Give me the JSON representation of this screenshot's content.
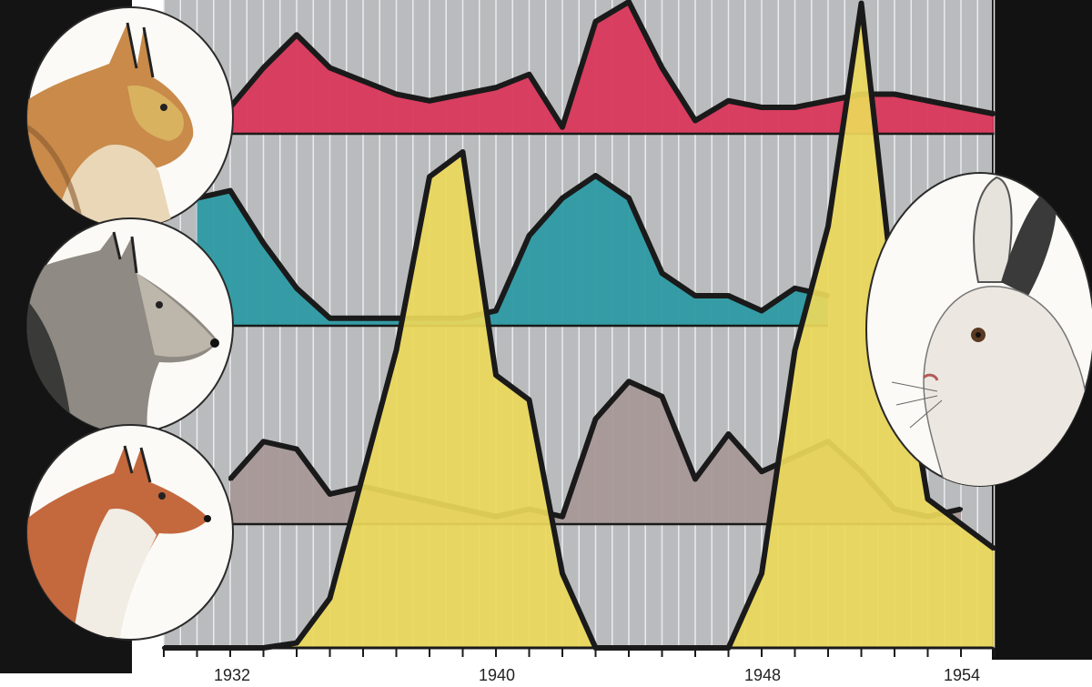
{
  "colors": {
    "background_panel": "#b9bbbd",
    "left_band": "#141414",
    "right_band": "#121212",
    "grid_line": "#e9ecef",
    "lynx": "#d8375a",
    "wolf": "#2d9aa4",
    "fox": "#a89898",
    "hare": "#ecd85a",
    "outline": "#1a1a1a"
  },
  "icons": [
    "lynx-portrait-icon",
    "wolf-portrait-icon",
    "fox-portrait-icon",
    "hare-portrait-icon"
  ],
  "chart_data": {
    "type": "area",
    "title": "",
    "xlabel": "",
    "ylabel": "",
    "x_tick_labels": [
      "1932",
      "1940",
      "1948",
      "1954"
    ],
    "x_range": [
      1930,
      1955
    ],
    "grid": "vertical lines",
    "x": [
      1930,
      1931,
      1932,
      1933,
      1934,
      1935,
      1936,
      1937,
      1938,
      1939,
      1940,
      1941,
      1942,
      1943,
      1944,
      1945,
      1946,
      1947,
      1948,
      1949,
      1950,
      1951,
      1952,
      1953,
      1954,
      1955
    ],
    "series": [
      {
        "key": "lynx",
        "baseline_rank": 1,
        "values": [
          null,
          null,
          0.2,
          0.5,
          0.75,
          0.5,
          0.4,
          0.3,
          0.25,
          0.3,
          0.35,
          0.45,
          0.05,
          0.85,
          1.0,
          0.5,
          0.1,
          0.25,
          0.2,
          0.2,
          0.25,
          0.3,
          0.3,
          0.25,
          0.2,
          0.15
        ]
      },
      {
        "key": "wolf",
        "baseline_rank": 2,
        "values": [
          null,
          0.85,
          0.9,
          0.55,
          0.25,
          0.05,
          0.05,
          0.05,
          0.05,
          0.05,
          0.1,
          0.6,
          0.85,
          1.0,
          0.85,
          0.35,
          0.2,
          0.2,
          0.1,
          0.25,
          0.2,
          null,
          null,
          null,
          null,
          null
        ]
      },
      {
        "key": "fox",
        "baseline_rank": 3,
        "values": [
          null,
          null,
          0.3,
          0.55,
          0.5,
          0.2,
          0.25,
          0.2,
          0.15,
          0.1,
          0.05,
          0.1,
          0.05,
          0.7,
          0.95,
          0.85,
          0.3,
          0.6,
          0.35,
          0.45,
          0.55,
          0.35,
          0.1,
          0.05,
          0.1,
          null
        ]
      },
      {
        "key": "hare",
        "baseline_rank": 4,
        "values": [
          0.0,
          0.0,
          0.0,
          0.0,
          0.01,
          0.1,
          0.35,
          0.6,
          0.95,
          1.0,
          0.55,
          0.5,
          0.15,
          0.0,
          0.0,
          0.0,
          0.0,
          0.0,
          0.15,
          0.6,
          0.85,
          1.3,
          0.7,
          0.3,
          0.25,
          0.2
        ]
      }
    ]
  }
}
